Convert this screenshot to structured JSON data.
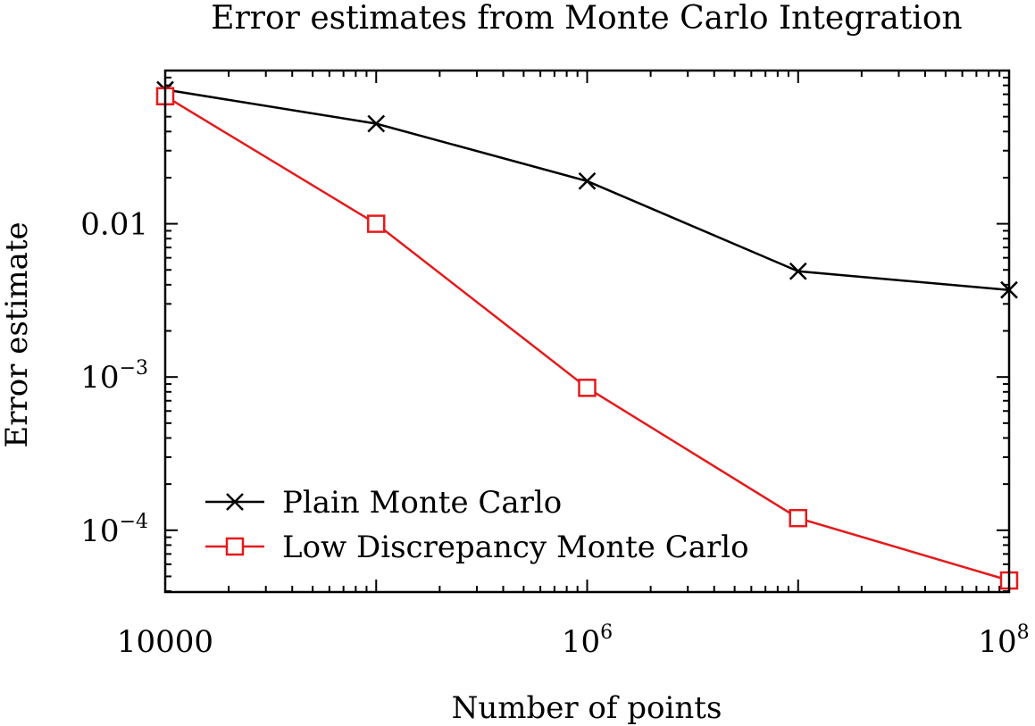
{
  "chart_data": {
    "type": "line",
    "title": "Error estimates from Monte Carlo Integration",
    "xlabel": "Number of points",
    "ylabel": "Error estimate",
    "x_scale": "log",
    "y_scale": "log",
    "xlim": [
      10000,
      100000000
    ],
    "ylim": [
      3.95e-05,
      0.1
    ],
    "x_tick_labels": [
      {
        "value": 10000,
        "base": "10000",
        "exp": ""
      },
      {
        "value": 1000000,
        "base": "10",
        "exp": "6"
      },
      {
        "value": 100000000,
        "base": "10",
        "exp": "8"
      }
    ],
    "y_tick_labels": [
      {
        "value": 0.01,
        "base": "0.01",
        "exp": ""
      },
      {
        "value": 0.001,
        "base": "10",
        "exp": "−3"
      },
      {
        "value": 0.0001,
        "base": "10",
        "exp": "−4"
      }
    ],
    "grid": false,
    "legend_position": "bottom-left",
    "series": [
      {
        "name": "Plain Monte Carlo",
        "color": "#000000",
        "marker": "cross",
        "x": [
          10000,
          100000,
          1000000,
          10000000,
          100000000
        ],
        "y": [
          0.075,
          0.045,
          0.019,
          0.0049,
          0.0037
        ]
      },
      {
        "name": "Low Discrepancy Monte Carlo",
        "color": "#e41a1c",
        "marker": "open-square",
        "x": [
          10000,
          100000,
          1000000,
          10000000,
          100000000
        ],
        "y": [
          0.068,
          0.01,
          0.00085,
          0.00012,
          4.7e-05
        ]
      }
    ]
  }
}
